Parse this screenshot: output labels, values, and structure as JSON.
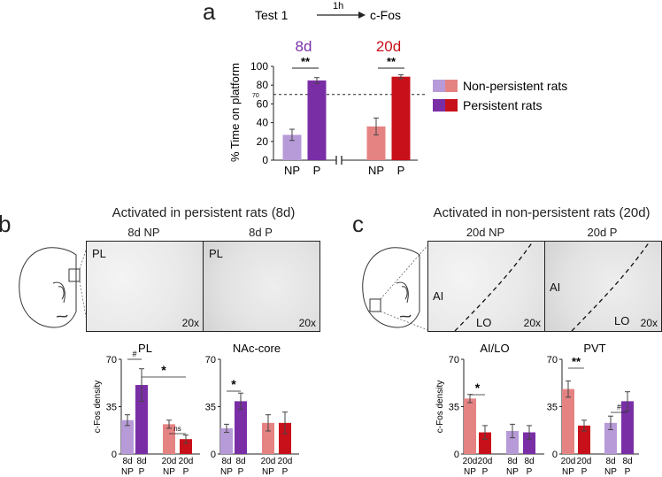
{
  "panel_a": {
    "letter": "a",
    "protocol": {
      "test": "Test 1",
      "delay": "1h",
      "measure": "c-Fos"
    },
    "group_8d": "8d",
    "group_20d": "20d",
    "ylabel": "% Time on platform",
    "threshold_label": "70",
    "sig_8d": "**",
    "sig_20d": "**",
    "legend": {
      "np": "Non-persistent rats",
      "p": "Persistent rats"
    }
  },
  "panel_b": {
    "letter": "b",
    "title": "Activated in persistent rats (8d)",
    "img_left": "8d NP",
    "img_right": "8d P",
    "region_left": "PL",
    "region_right": "PL",
    "mag_left": "20x",
    "mag_right": "20x"
  },
  "panel_c": {
    "letter": "c",
    "title": "Activated in non-persistent rats (20d)",
    "img_left": "20d NP",
    "img_right": "20d P",
    "region_ai_left": "AI",
    "region_lo_left": "LO",
    "region_ai_right": "AI",
    "region_lo_right": "LO",
    "mag_left": "20x",
    "mag_right": "20x"
  },
  "colors": {
    "np_8d": "#b79ad8",
    "p_8d": "#7a2ea6",
    "np_20d": "#e58383",
    "p_20d": "#c8101a"
  },
  "chart_data": [
    {
      "id": "a",
      "type": "bar",
      "ylabel": "% Time on platform",
      "ylim": [
        0,
        100
      ],
      "yticks": [
        0,
        20,
        40,
        60,
        80,
        100
      ],
      "threshold": 70,
      "bars": [
        {
          "label": "NP",
          "group": "8d",
          "value": 27,
          "err": 6,
          "color": "#b79ad8"
        },
        {
          "label": "P",
          "group": "8d",
          "value": 85,
          "err": 3,
          "color": "#7a2ea6"
        },
        {
          "label": "NP",
          "group": "20d",
          "value": 36,
          "err": 9,
          "color": "#e58383"
        },
        {
          "label": "P",
          "group": "20d",
          "value": 89,
          "err": 2,
          "color": "#c8101a"
        }
      ]
    },
    {
      "id": "PL",
      "type": "bar",
      "title": "PL",
      "ylabel": "c-Fos density",
      "ylim": [
        0,
        70
      ],
      "yticks": [
        0,
        35,
        70
      ],
      "bars": [
        {
          "label": [
            "8d",
            "NP"
          ],
          "value": 25,
          "err": 4,
          "color": "#b79ad8"
        },
        {
          "label": [
            "8d",
            "P"
          ],
          "value": 51,
          "err": 12,
          "color": "#7a2ea6"
        },
        {
          "label": [
            "20d",
            "NP"
          ],
          "value": 22,
          "err": 3,
          "color": "#e58383"
        },
        {
          "label": [
            "20d",
            "P"
          ],
          "value": 11,
          "err": 3,
          "color": "#c8101a"
        }
      ],
      "annotations": [
        "#",
        "*",
        "ns"
      ]
    },
    {
      "id": "NAc-core",
      "type": "bar",
      "title": "NAc-core",
      "ylim": [
        0,
        70
      ],
      "yticks": [
        0,
        35,
        70
      ],
      "bars": [
        {
          "label": [
            "8d",
            "NP"
          ],
          "value": 19,
          "err": 3,
          "color": "#b79ad8"
        },
        {
          "label": [
            "8d",
            "P"
          ],
          "value": 39,
          "err": 6,
          "color": "#7a2ea6"
        },
        {
          "label": [
            "20d",
            "NP"
          ],
          "value": 23,
          "err": 6,
          "color": "#e58383"
        },
        {
          "label": [
            "20d",
            "P"
          ],
          "value": 23,
          "err": 8,
          "color": "#c8101a"
        }
      ],
      "annotations": [
        "*"
      ]
    },
    {
      "id": "AI/LO",
      "type": "bar",
      "title": "AI/LO",
      "ylabel": "c-Fos density",
      "ylim": [
        0,
        70
      ],
      "yticks": [
        0,
        35,
        70
      ],
      "bars": [
        {
          "label": [
            "20d",
            "NP"
          ],
          "value": 41,
          "err": 3,
          "color": "#e58383"
        },
        {
          "label": [
            "20d",
            "P"
          ],
          "value": 16,
          "err": 5,
          "color": "#c8101a"
        },
        {
          "label": [
            "8d",
            "NP"
          ],
          "value": 17,
          "err": 5,
          "color": "#b79ad8"
        },
        {
          "label": [
            "8d",
            "P"
          ],
          "value": 16,
          "err": 5,
          "color": "#7a2ea6"
        }
      ],
      "annotations": [
        "*"
      ]
    },
    {
      "id": "PVT",
      "type": "bar",
      "title": "PVT",
      "ylim": [
        0,
        70
      ],
      "yticks": [
        0,
        35,
        70
      ],
      "bars": [
        {
          "label": [
            "20d",
            "NP"
          ],
          "value": 48,
          "err": 6,
          "color": "#e58383"
        },
        {
          "label": [
            "20d",
            "P"
          ],
          "value": 21,
          "err": 4,
          "color": "#c8101a"
        },
        {
          "label": [
            "8d",
            "NP"
          ],
          "value": 23,
          "err": 5,
          "color": "#b79ad8"
        },
        {
          "label": [
            "8d",
            "P"
          ],
          "value": 39,
          "err": 7,
          "color": "#7a2ea6"
        }
      ],
      "annotations": [
        "**",
        "#"
      ]
    }
  ]
}
